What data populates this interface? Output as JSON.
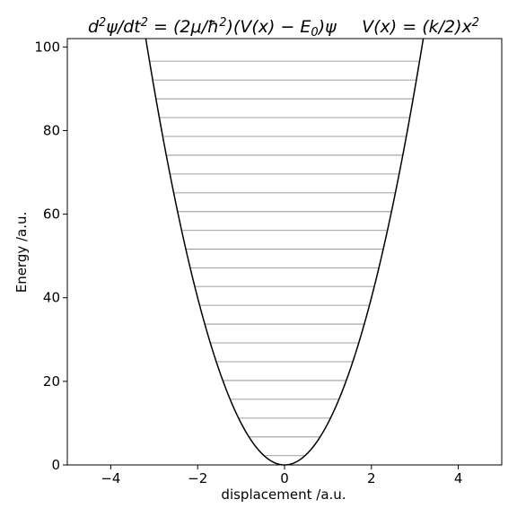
{
  "chart_data": {
    "type": "line",
    "title": {
      "left": [
        "d",
        "2",
        "ψ/dt",
        "2",
        " = (2μ/ħ",
        "2",
        ")(V(x) − E",
        "0",
        ")ψ"
      ],
      "right": [
        "V(x) =  (k/2)x",
        "2"
      ]
    },
    "xlabel": "displacement /a.u.",
    "ylabel": "Energy /a.u.",
    "xlim": [
      -5,
      5
    ],
    "ylim": [
      0,
      102
    ],
    "xticks": [
      -4,
      -2,
      0,
      2,
      4
    ],
    "xtick_labels": [
      "−4",
      "−2",
      "0",
      "2",
      "4"
    ],
    "yticks": [
      0,
      20,
      40,
      60,
      80,
      100
    ],
    "ytick_labels": [
      "0",
      "20",
      "40",
      "60",
      "80",
      "100"
    ],
    "grid": false,
    "potential": {
      "formula": "V(x) = (k/2)x^2",
      "k": 20,
      "color": "#000000"
    },
    "energy_levels": {
      "color": "#808080",
      "values": [
        2.2,
        6.7,
        11.2,
        15.7,
        20.2,
        24.7,
        29.2,
        33.7,
        38.2,
        42.7,
        47.1,
        51.6,
        56.1,
        60.6,
        65.1,
        69.6,
        74.1,
        78.6,
        83.1,
        87.6,
        92.1,
        96.6
      ]
    }
  }
}
